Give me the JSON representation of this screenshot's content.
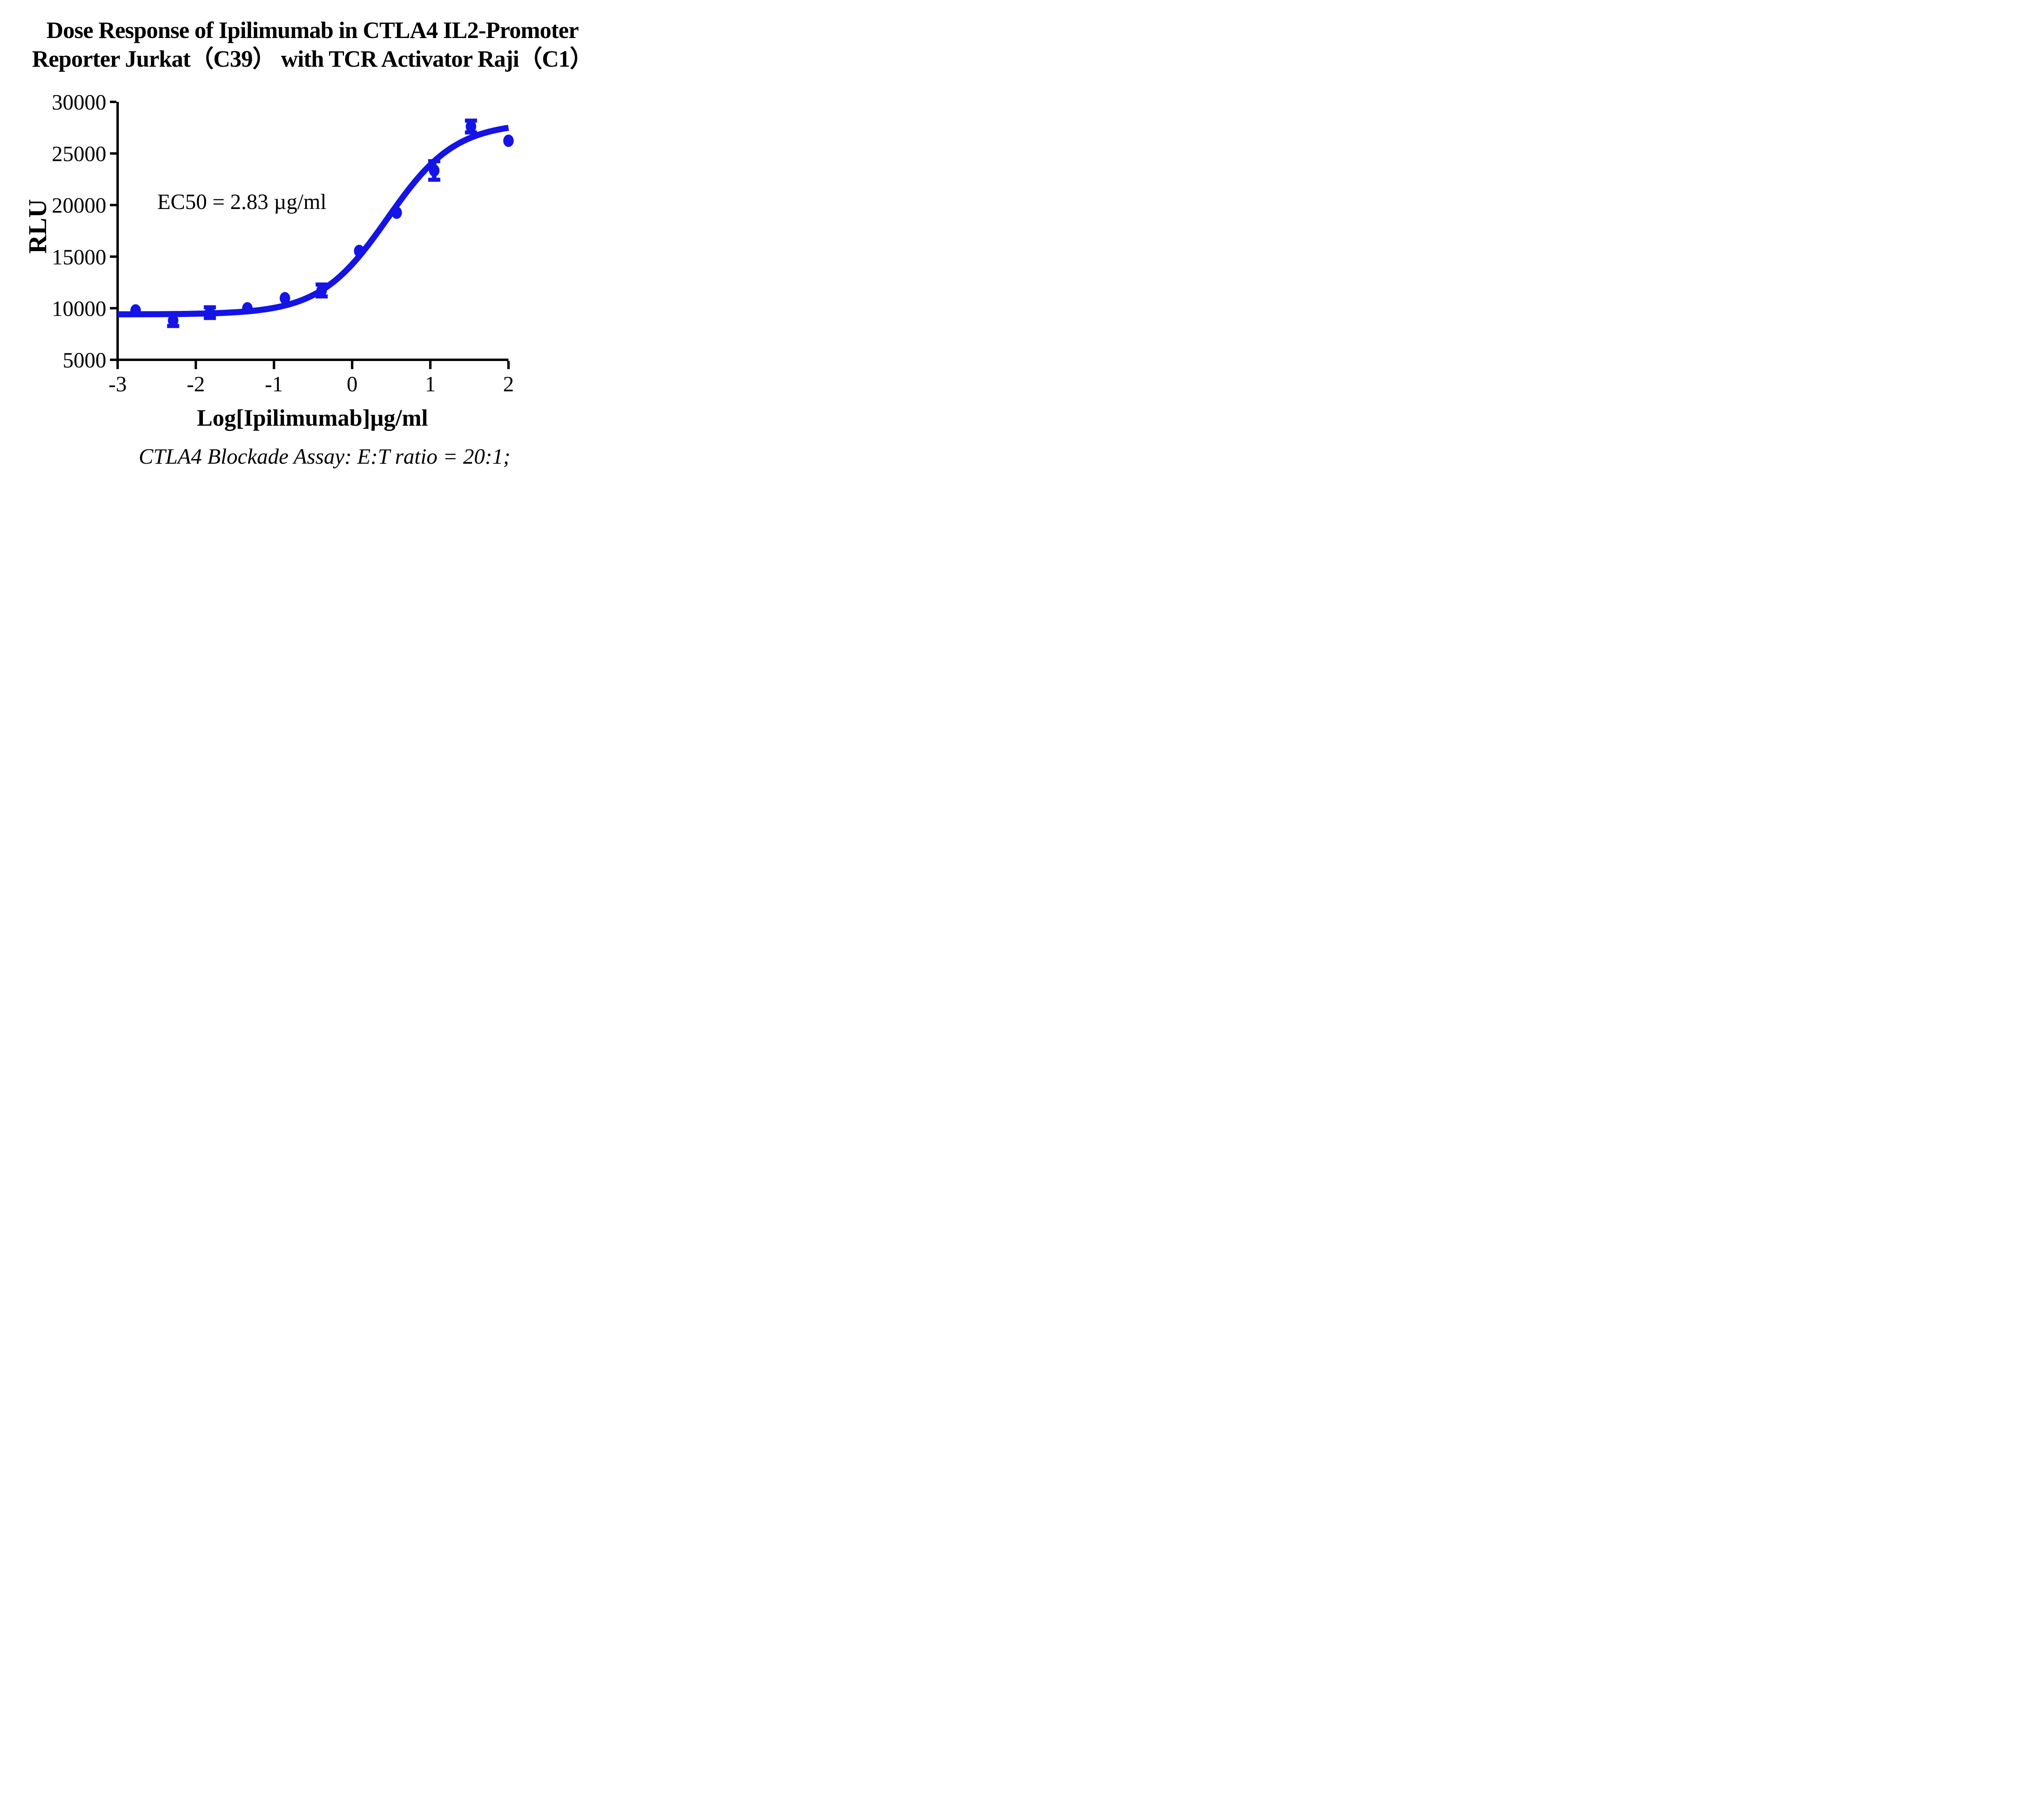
{
  "chart_data": {
    "type": "scatter",
    "title_lines": [
      "Dose Response of Ipilimumab in CTLA4 IL2-Promoter",
      "Reporter Jurkat（C39） with TCR Activator Raji（C1）"
    ],
    "ylabel": "RLU",
    "xlabel": "Log[Ipilimumab]µg/ml",
    "annotation": "EC50 = 2.83 µg/ml",
    "footer": "CTLA4 Blockade Assay: E:T ratio = 20:1;",
    "legend_position": "none",
    "grid": false,
    "xlim": [
      -3,
      2
    ],
    "ylim": [
      5000,
      30000
    ],
    "x_ticks": [
      "-3",
      "-2",
      "-1",
      "0",
      "1",
      "2"
    ],
    "x_tick_values": [
      -3,
      -2,
      -1,
      0,
      1,
      2
    ],
    "y_ticks": [
      "30000",
      "25000",
      "20000",
      "15000",
      "10000",
      "5000"
    ],
    "y_tick_values": [
      30000,
      25000,
      20000,
      15000,
      10000,
      5000
    ],
    "series_color": "#1414E6",
    "axis_color": "#000000",
    "points": [
      {
        "x": -2.77,
        "y": 9790,
        "err": 0
      },
      {
        "x": -2.29,
        "y": 8810,
        "err": 540
      },
      {
        "x": -1.82,
        "y": 9570,
        "err": 520
      },
      {
        "x": -1.34,
        "y": 9990,
        "err": 0
      },
      {
        "x": -0.86,
        "y": 10970,
        "err": 0
      },
      {
        "x": -0.39,
        "y": 11720,
        "err": 580
      },
      {
        "x": 0.09,
        "y": 15550,
        "err": 0
      },
      {
        "x": 0.57,
        "y": 19260,
        "err": 0
      },
      {
        "x": 1.05,
        "y": 23350,
        "err": 900
      },
      {
        "x": 1.52,
        "y": 27610,
        "err": 575
      },
      {
        "x": 2.0,
        "y": 26230,
        "err": 0
      }
    ],
    "fit_curve": {
      "model": "4PL",
      "bottom": 9400,
      "top": 28000,
      "log_ec50": 0.4518,
      "hill": 1.0,
      "x_start": -3.0,
      "x_end": 2.0
    }
  }
}
